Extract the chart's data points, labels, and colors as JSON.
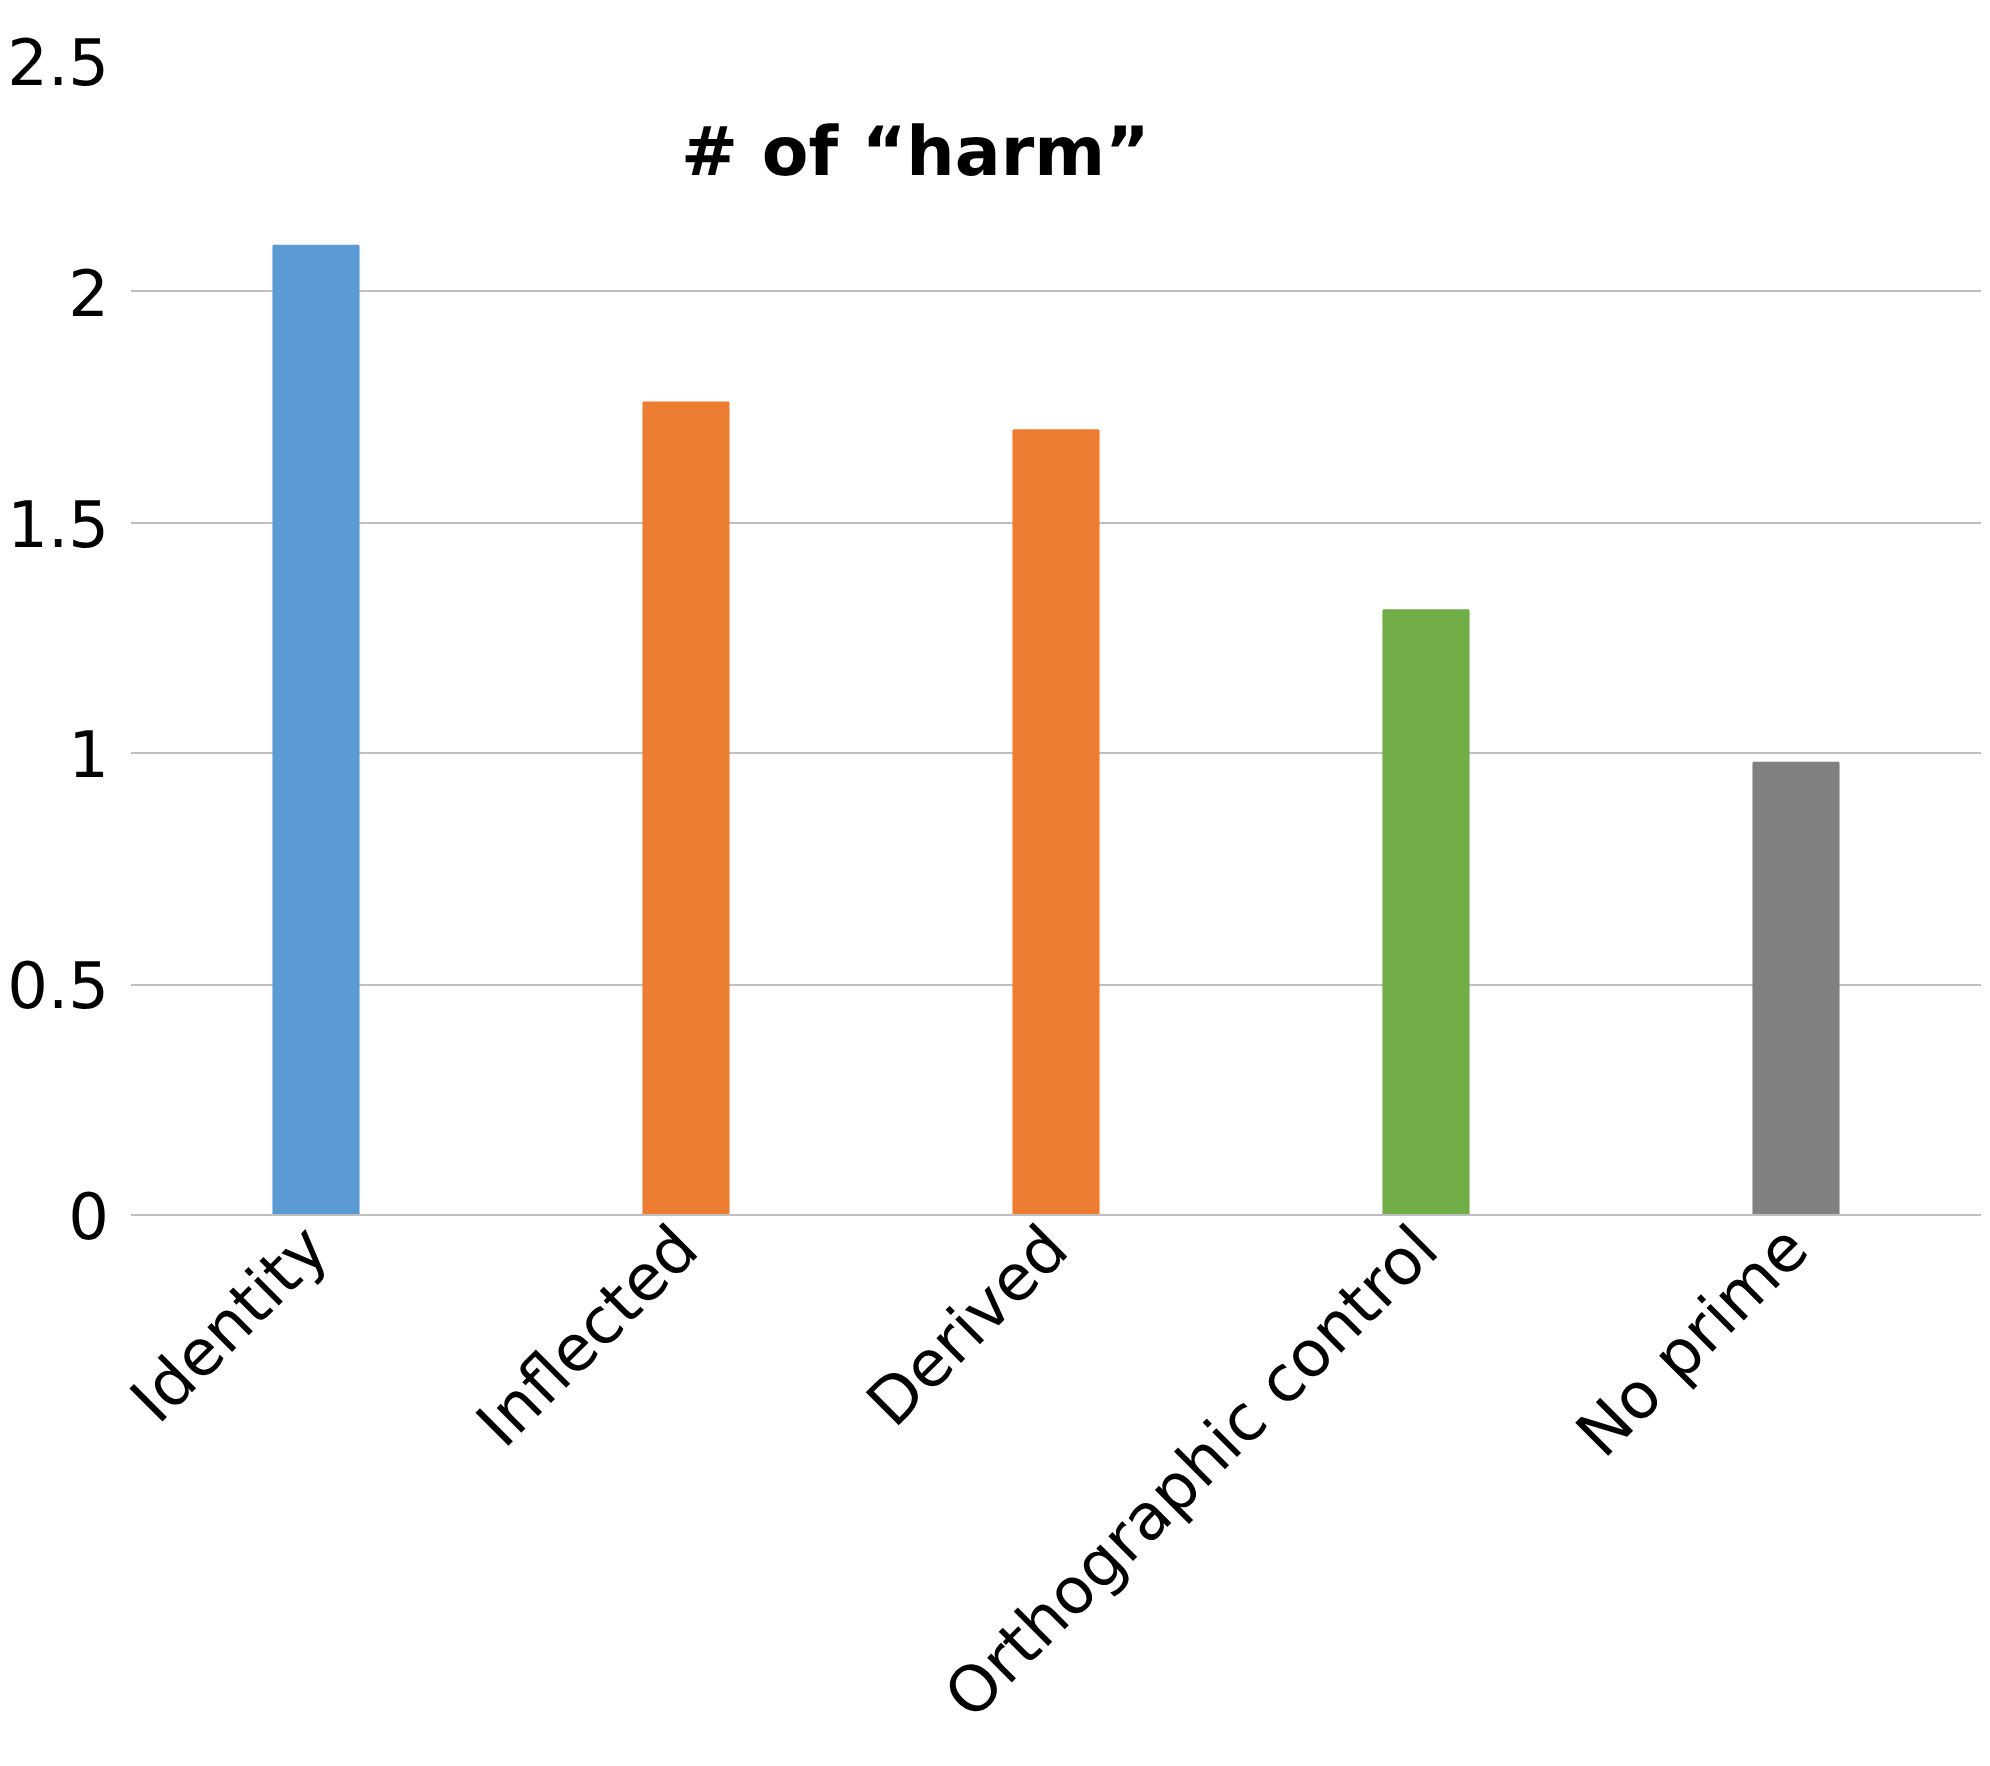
{
  "chart_data": {
    "type": "bar",
    "title": "# of “harm”",
    "categories": [
      "Identity",
      "Inflected",
      "Derived",
      "Orthographic control",
      "No prime"
    ],
    "values": [
      2.1,
      1.76,
      1.7,
      1.31,
      0.98
    ],
    "colors": [
      "#5b9bd5",
      "#ed7d31",
      "#ed7d31",
      "#70ad47",
      "#808080"
    ],
    "ylim": [
      0,
      2.5
    ],
    "yticks": [
      0,
      0.5,
      1,
      1.5,
      2,
      2.5
    ],
    "grid": "y"
  }
}
